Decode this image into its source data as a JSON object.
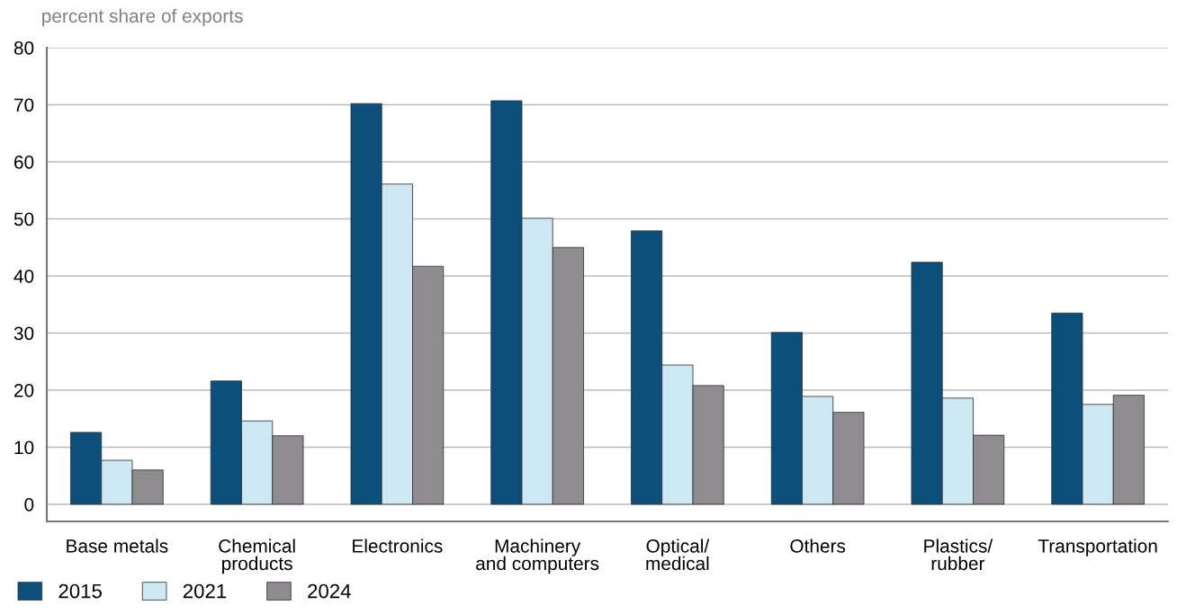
{
  "chart_data": {
    "type": "bar",
    "ylabel": "percent share of exports",
    "categories": [
      "Base metals",
      "Chemical\nproducts",
      "Electronics",
      "Machinery\nand computers",
      "Optical/\nmedical",
      "Others",
      "Plastics/\nrubber",
      "Transportation"
    ],
    "series": [
      {
        "name": "2015",
        "color": "#0b4f7a",
        "values": [
          12.6,
          21.6,
          70.2,
          70.7,
          47.9,
          30.1,
          42.4,
          33.5
        ]
      },
      {
        "name": "2021",
        "color": "#cde8f3",
        "values": [
          7.7,
          14.6,
          56.1,
          50.1,
          24.4,
          18.9,
          18.6,
          17.5
        ]
      },
      {
        "name": "2024",
        "color": "#8e8c8e",
        "values": [
          6.0,
          12.0,
          41.7,
          45.0,
          20.8,
          16.1,
          12.1,
          19.1
        ]
      }
    ],
    "ylim": [
      -3,
      80
    ],
    "yticks": [
      0,
      10,
      20,
      30,
      40,
      50,
      60,
      70,
      80
    ],
    "grid": "y",
    "legend": "bottom left"
  }
}
